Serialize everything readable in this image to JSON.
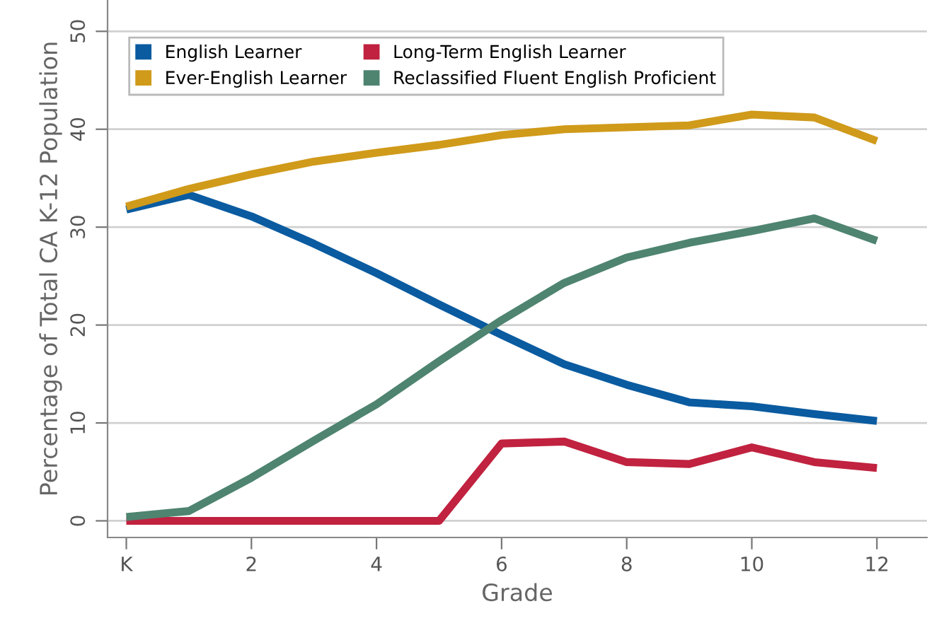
{
  "chart_data": {
    "type": "line",
    "xlabel": "Grade",
    "ylabel": "Percentage of Total CA K-12 Population",
    "x": [
      0,
      1,
      2,
      3,
      4,
      5,
      6,
      7,
      8,
      9,
      10,
      11,
      12
    ],
    "xlim": [
      -0.3,
      12.8
    ],
    "xticks": [
      {
        "value": 0,
        "label": "K"
      },
      2,
      4,
      6,
      8,
      10,
      12
    ],
    "ylim": [
      -1.7,
      53.2
    ],
    "yticks": [
      0,
      10,
      20,
      30,
      40,
      50
    ],
    "grid": "y",
    "legend": "top left",
    "marker": "none",
    "line_style": "solid",
    "series": [
      {
        "name": "English Learner",
        "color": "#0a5ba0",
        "values": [
          31.8,
          33.3,
          31.1,
          28.3,
          25.3,
          22.1,
          19.0,
          16.0,
          13.9,
          12.1,
          11.7,
          10.9,
          10.2
        ]
      },
      {
        "name": "Ever-English Learner",
        "color": "#d09a1a",
        "values": [
          32.1,
          33.9,
          35.4,
          36.7,
          37.6,
          38.4,
          39.4,
          40.0,
          40.2,
          40.4,
          41.5,
          41.2,
          38.8
        ]
      },
      {
        "name": "Long-Term English Learner",
        "color": "#c0223f",
        "values": [
          0,
          0,
          0,
          0,
          0,
          0,
          7.9,
          8.1,
          6.0,
          5.8,
          7.5,
          6.0,
          5.4
        ]
      },
      {
        "name": "Reclassified Fluent English Proficient",
        "color": "#4e8470",
        "values": [
          0.4,
          1.0,
          4.4,
          8.2,
          11.9,
          16.3,
          20.5,
          24.3,
          26.9,
          28.4,
          29.6,
          30.9,
          28.6
        ]
      }
    ]
  }
}
